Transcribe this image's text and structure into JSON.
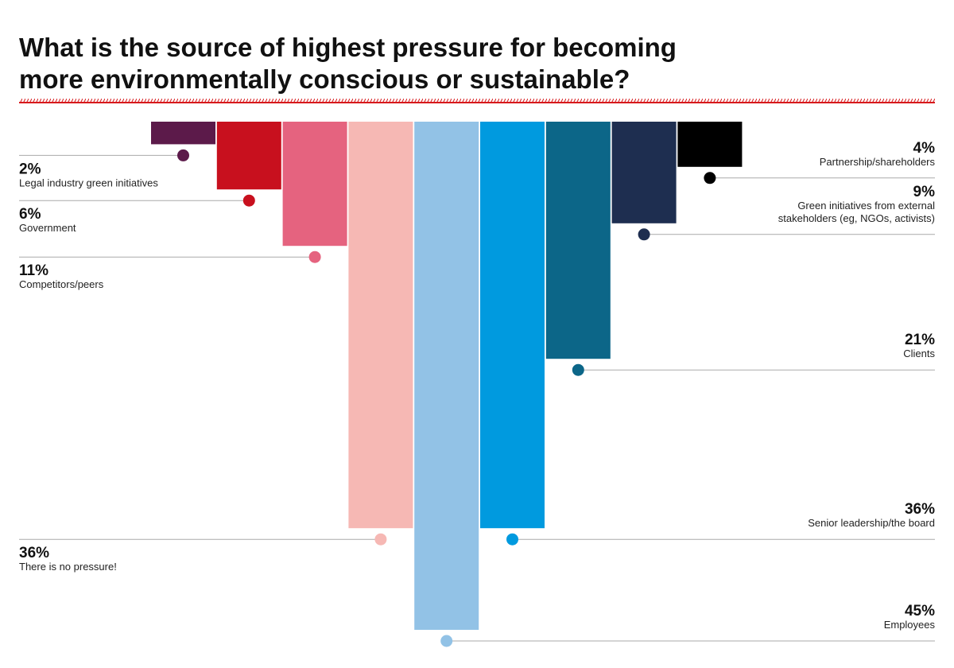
{
  "title_lines": [
    "What is the source of highest pressure for becoming",
    "more environmentally conscious or sustainable?"
  ],
  "colors": {
    "accent_red": "#d7191c",
    "leader": "#aaaaaa"
  },
  "chart_data": {
    "type": "bar",
    "orientation": "vertical-hanging",
    "title": "What is the source of highest pressure for becoming more environmentally conscious or sustainable?",
    "unit": "%",
    "ylim": [
      0,
      45
    ],
    "categories": [
      "Legal industry green initiatives",
      "Government",
      "Competitors/peers",
      "There is no pressure!",
      "Employees",
      "Senior leadership/the board",
      "Clients",
      "Green initiatives from external stakeholders (eg, NGOs, activists)",
      "Partnership/shareholders"
    ],
    "values": [
      2,
      6,
      11,
      36,
      45,
      36,
      21,
      9,
      4
    ],
    "bars": [
      {
        "label_lines": [
          "Legal industry green initiatives"
        ],
        "value": 2,
        "value_text": "2%",
        "color": "#5c1a4a",
        "side": "left"
      },
      {
        "label_lines": [
          "Government"
        ],
        "value": 6,
        "value_text": "6%",
        "color": "#c8101e",
        "side": "left"
      },
      {
        "label_lines": [
          "Competitors/peers"
        ],
        "value": 11,
        "value_text": "11%",
        "color": "#e5637f",
        "side": "left"
      },
      {
        "label_lines": [
          "There is no pressure!"
        ],
        "value": 36,
        "value_text": "36%",
        "color": "#f6b8b4",
        "side": "left"
      },
      {
        "label_lines": [
          "Employees"
        ],
        "value": 45,
        "value_text": "45%",
        "color": "#92c2e6",
        "side": "right"
      },
      {
        "label_lines": [
          "Senior leadership/the board"
        ],
        "value": 36,
        "value_text": "36%",
        "color": "#009adf",
        "side": "right"
      },
      {
        "label_lines": [
          "Clients"
        ],
        "value": 21,
        "value_text": "21%",
        "color": "#0c6688",
        "side": "right"
      },
      {
        "label_lines": [
          "Green initiatives from external",
          "stakeholders (eg, NGOs, activists)"
        ],
        "value": 9,
        "value_text": "9%",
        "color": "#1e2e50",
        "side": "right"
      },
      {
        "label_lines": [
          "Partnership/shareholders"
        ],
        "value": 4,
        "value_text": "4%",
        "color": "#000000",
        "side": "right"
      }
    ]
  }
}
